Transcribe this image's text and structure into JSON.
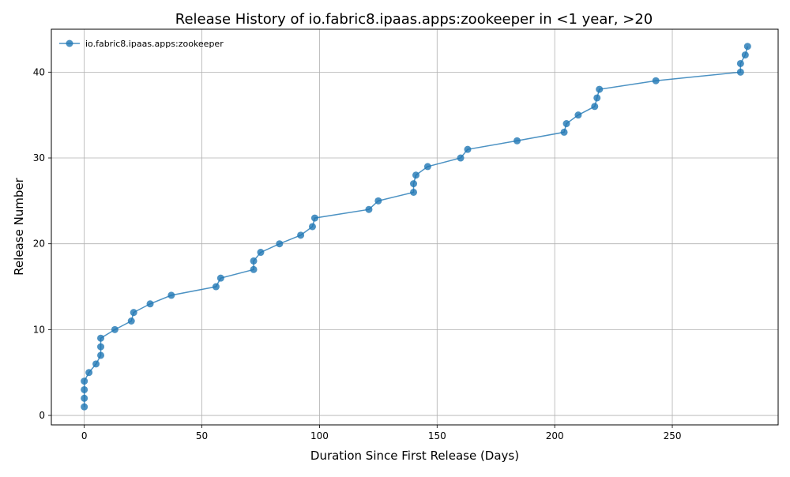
{
  "chart_data": {
    "type": "line",
    "title": "Release History of io.fabric8.ipaas.apps:zookeeper in <1 year, >20",
    "xlabel": "Duration Since First Release (Days)",
    "ylabel": "Release Number",
    "xlim": [
      -14,
      295
    ],
    "ylim": [
      -1.1,
      45
    ],
    "x_ticks": [
      0,
      50,
      100,
      150,
      200,
      250
    ],
    "y_ticks": [
      0,
      10,
      20,
      30,
      40
    ],
    "grid": true,
    "legend_position": "top-left",
    "series": [
      {
        "name": "io.fabric8.ipaas.apps:zookeeper",
        "color": "#1f77b4",
        "marker": "circle",
        "points": [
          [
            0,
            1
          ],
          [
            0,
            2
          ],
          [
            0,
            3
          ],
          [
            0,
            4
          ],
          [
            2,
            5
          ],
          [
            5,
            6
          ],
          [
            7,
            7
          ],
          [
            7,
            8
          ],
          [
            7,
            9
          ],
          [
            13,
            10
          ],
          [
            20,
            11
          ],
          [
            21,
            12
          ],
          [
            28,
            13
          ],
          [
            37,
            14
          ],
          [
            56,
            15
          ],
          [
            58,
            16
          ],
          [
            72,
            17
          ],
          [
            72,
            18
          ],
          [
            75,
            19
          ],
          [
            83,
            20
          ],
          [
            92,
            21
          ],
          [
            97,
            22
          ],
          [
            98,
            23
          ],
          [
            121,
            24
          ],
          [
            125,
            25
          ],
          [
            140,
            26
          ],
          [
            140,
            27
          ],
          [
            141,
            28
          ],
          [
            146,
            29
          ],
          [
            160,
            30
          ],
          [
            163,
            31
          ],
          [
            184,
            32
          ],
          [
            204,
            33
          ],
          [
            205,
            34
          ],
          [
            210,
            35
          ],
          [
            217,
            36
          ],
          [
            218,
            37
          ],
          [
            219,
            38
          ],
          [
            243,
            39
          ],
          [
            279,
            40
          ],
          [
            279,
            41
          ],
          [
            281,
            42
          ],
          [
            282,
            43
          ]
        ]
      }
    ]
  }
}
